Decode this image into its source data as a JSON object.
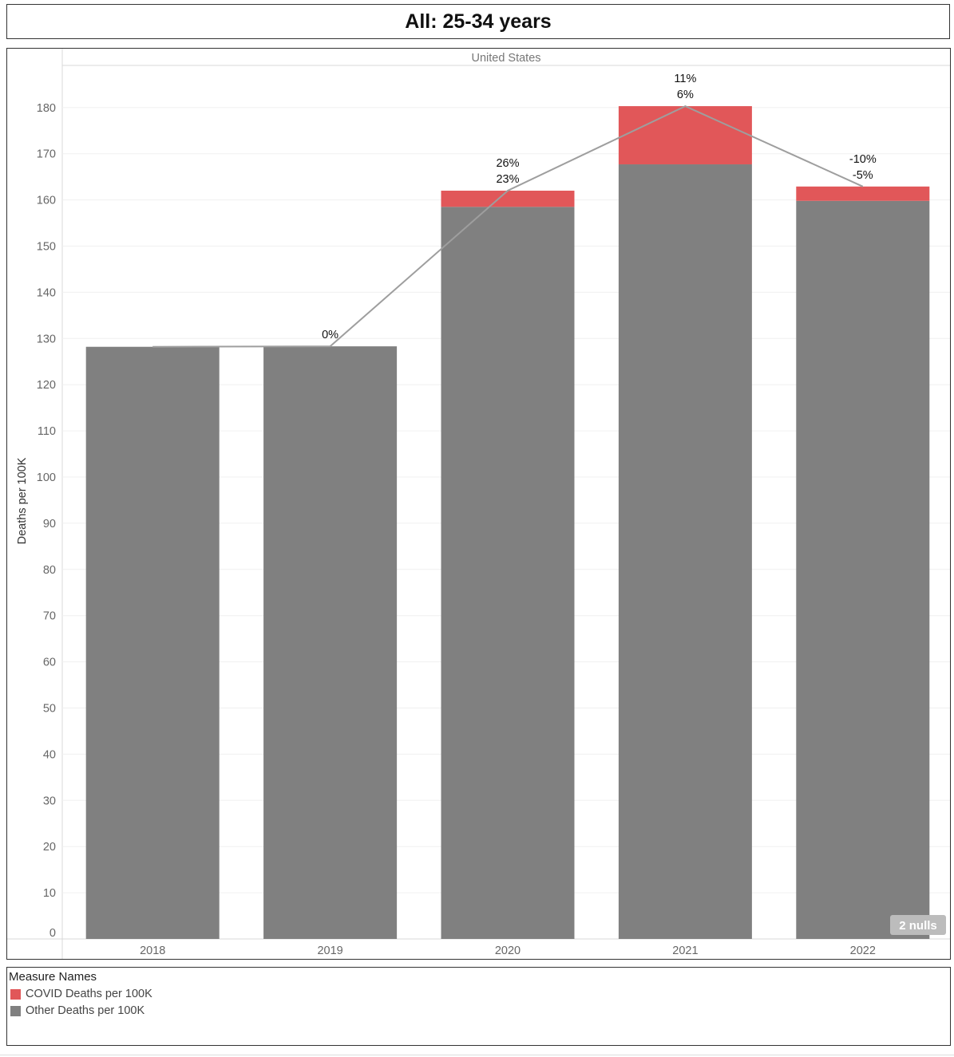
{
  "title": "All: 25-34 years",
  "colors": {
    "covid": "#e15759",
    "other": "#808080",
    "line": "#9e9e9e",
    "grid": "#f0f0f0",
    "axis_text": "#666666",
    "null_badge": "#bcbcbc"
  },
  "null_badge": "2 nulls",
  "legend": {
    "title": "Measure Names",
    "items": [
      {
        "label": "COVID Deaths per 100K",
        "color": "#e15759"
      },
      {
        "label": "Other Deaths per 100K",
        "color": "#808080"
      }
    ]
  },
  "chart_data": {
    "type": "bar",
    "stacked": true,
    "panel_header": "United States",
    "ylabel": "Deaths per 100K",
    "xlabel": "",
    "ylim": [
      0,
      182
    ],
    "yticks": [
      0,
      10,
      20,
      30,
      40,
      50,
      60,
      70,
      80,
      90,
      100,
      110,
      120,
      130,
      140,
      150,
      160,
      170,
      180
    ],
    "categories": [
      "2018",
      "2019",
      "2020",
      "2021",
      "2022"
    ],
    "series": [
      {
        "name": "Other Deaths per 100K",
        "values": [
          128.2,
          128.3,
          158.5,
          167.7,
          159.8
        ]
      },
      {
        "name": "COVID Deaths per 100K",
        "values": [
          null,
          null,
          3.5,
          12.6,
          3.1
        ]
      }
    ],
    "total_line": [
      128.2,
      128.3,
      162.0,
      180.3,
      162.9
    ],
    "annotations": [
      {
        "category": "2019",
        "lines": [
          "0%"
        ]
      },
      {
        "category": "2020",
        "lines": [
          "26%",
          "23%"
        ]
      },
      {
        "category": "2021",
        "lines": [
          "11%",
          "6%"
        ]
      },
      {
        "category": "2022",
        "lines": [
          "-10%",
          "-5%"
        ]
      }
    ],
    "grid": true
  }
}
